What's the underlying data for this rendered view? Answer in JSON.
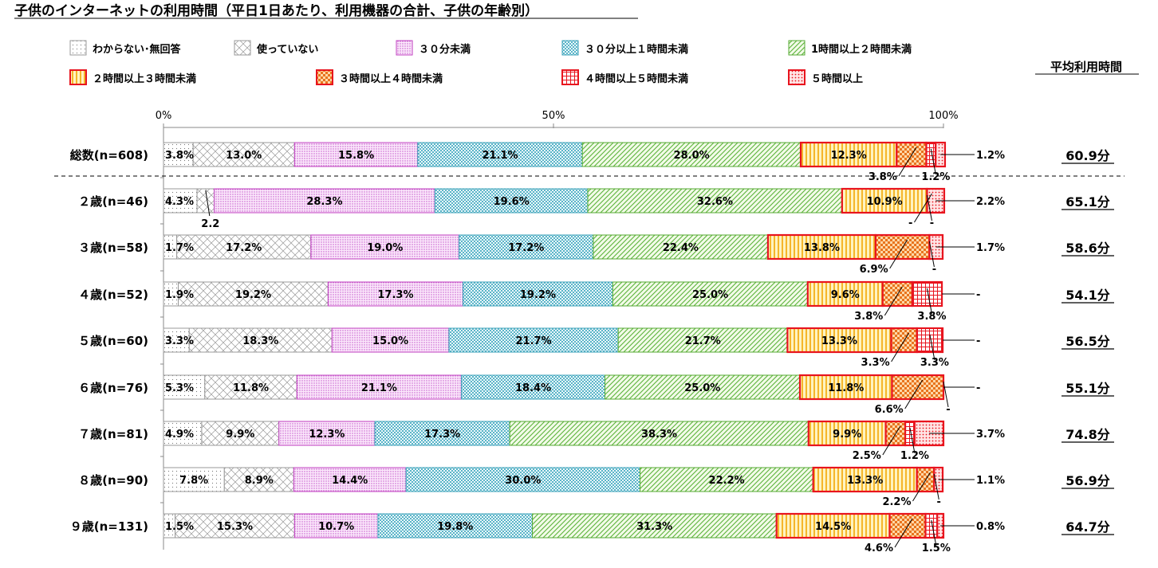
{
  "title": "子供のインターネットの利用時間（平日1日あたり、利用機器の合計、子供の年齢別）",
  "avg_header": "平均利用時間",
  "colors": {
    "red": "#e8141e",
    "pink": "#c040c0",
    "teal": "#3aa0b8",
    "green": "#55aa33",
    "orange": "#ff9a1e",
    "gray": "#888888"
  },
  "chart_data": {
    "type": "bar",
    "orientation": "horizontal",
    "stacked": "percent",
    "title": "子供のインターネットの利用時間（平日1日あたり、利用機器の合計、子供の年齢別）",
    "xlim": [
      0,
      100
    ],
    "xticks": [
      "0%",
      "50%",
      "100%"
    ],
    "legend_position": "top",
    "categories": [
      "総数(n=608)",
      "２歳(n=46)",
      "３歳(n=58)",
      "４歳(n=52)",
      "５歳(n=60)",
      "６歳(n=76)",
      "７歳(n=81)",
      "８歳(n=90)",
      "９歳(n=131)"
    ],
    "series": [
      {
        "name": "わからない･無回答",
        "values": [
          3.8,
          4.3,
          1.7,
          1.9,
          3.3,
          5.3,
          4.9,
          7.8,
          1.5
        ]
      },
      {
        "name": "使っていない",
        "values": [
          13.0,
          2.2,
          17.2,
          19.2,
          18.3,
          11.8,
          9.9,
          8.9,
          15.3
        ]
      },
      {
        "name": "３０分未満",
        "values": [
          15.8,
          28.3,
          19.0,
          17.3,
          15.0,
          21.1,
          12.3,
          14.4,
          10.7
        ]
      },
      {
        "name": "３０分以上１時間未満",
        "values": [
          21.1,
          19.6,
          17.2,
          19.2,
          21.7,
          18.4,
          17.3,
          30.0,
          19.8
        ]
      },
      {
        "name": "1時間以上２時間未満",
        "values": [
          28.0,
          32.6,
          22.4,
          25.0,
          21.7,
          25.0,
          38.3,
          22.2,
          31.3
        ]
      },
      {
        "name": "２時間以上３時間未満",
        "values": [
          12.3,
          10.9,
          13.8,
          9.6,
          13.3,
          11.8,
          9.9,
          13.3,
          14.5
        ]
      },
      {
        "name": "３時間以上４時間未満",
        "values": [
          3.8,
          0,
          6.9,
          3.8,
          3.3,
          6.6,
          2.5,
          2.2,
          4.6
        ]
      },
      {
        "name": "４時間以上５時間未満",
        "values": [
          1.2,
          0,
          0,
          3.8,
          3.3,
          0,
          1.2,
          0,
          1.5
        ]
      },
      {
        "name": "５時間以上",
        "values": [
          1.2,
          2.2,
          1.7,
          0,
          0,
          0,
          3.7,
          1.1,
          0.8
        ]
      }
    ],
    "segment_labels": [
      [
        "3.8%",
        "13.0%",
        "15.8%",
        "21.1%",
        "28.0%",
        "12.3%",
        "3.8%",
        "1.2%",
        "1.2%"
      ],
      [
        "4.3%",
        "2.2",
        "28.3%",
        "19.6%",
        "32.6%",
        "10.9%",
        "-",
        "-",
        "2.2%"
      ],
      [
        "1.7%",
        "17.2%",
        "19.0%",
        "17.2%",
        "22.4%",
        "13.8%",
        "6.9%",
        "-",
        "1.7%"
      ],
      [
        "1.9%",
        "19.2%",
        "17.3%",
        "19.2%",
        "25.0%",
        "9.6%",
        "3.8%",
        "3.8%",
        "-"
      ],
      [
        "3.3%",
        "18.3%",
        "15.0%",
        "21.7%",
        "21.7%",
        "13.3%",
        "3.3%",
        "3.3%",
        "-"
      ],
      [
        "5.3%",
        "11.8%",
        "21.1%",
        "18.4%",
        "25.0%",
        "11.8%",
        "6.6%",
        "-",
        "-"
      ],
      [
        "4.9%",
        "9.9%",
        "12.3%",
        "17.3%",
        "38.3%",
        "9.9%",
        "2.5%",
        "1.2%",
        "3.7%"
      ],
      [
        "7.8%",
        "8.9%",
        "14.4%",
        "30.0%",
        "22.2%",
        "13.3%",
        "2.2%",
        "-",
        "1.1%"
      ],
      [
        "1.5%",
        "15.3%",
        "10.7%",
        "19.8%",
        "31.3%",
        "14.5%",
        "4.6%",
        "1.5%",
        "0.8%"
      ]
    ],
    "averages": [
      "60.9分",
      "65.1分",
      "58.6分",
      "54.1分",
      "56.5分",
      "55.1分",
      "74.8分",
      "56.9分",
      "64.7分"
    ]
  }
}
